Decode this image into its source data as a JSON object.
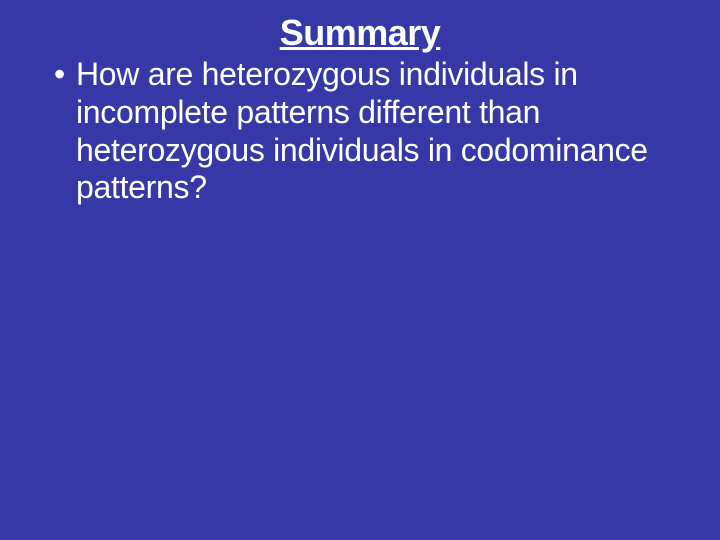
{
  "slide": {
    "background_color": "#3638a8",
    "text_color": "#ffffff",
    "title": {
      "text": "Summary",
      "font_size": 36,
      "font_weight": "bold",
      "underline": true,
      "align": "center"
    },
    "bullets": [
      {
        "text": "How are heterozygous individuals in incomplete patterns different than heterozygous individuals in codominance patterns?",
        "font_size": 32
      }
    ]
  }
}
